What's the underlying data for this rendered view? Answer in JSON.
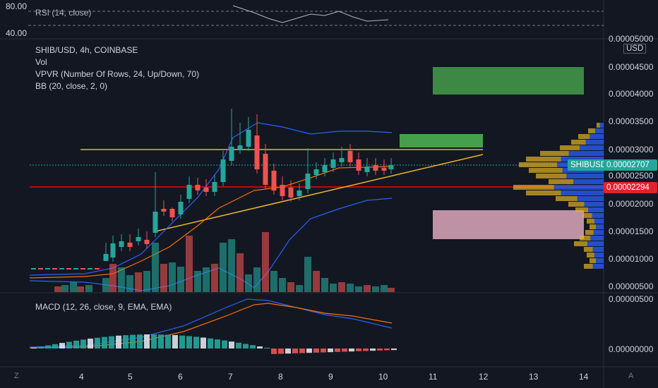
{
  "rsi": {
    "label": "RSI (14, close)",
    "y_labels": [
      "80.00",
      "40.00"
    ]
  },
  "main": {
    "title": "SHIB/USD, 4h, COINBASE",
    "indicators": [
      "Vol",
      "VPVR (Number Of Rows, 24, Up/Down, 70)",
      "BB (20, close, 2, 0)"
    ],
    "currency_button": "USD",
    "price_labels": [
      "0.00005000",
      "0.00004500",
      "0.00004000",
      "0.00003500",
      "0.00003000",
      "0.00002500",
      "0.00002000",
      "0.00001500",
      "0.00001000",
      "0.00000500"
    ],
    "symbol_badge": "SHIBUSD",
    "last_price": "0.00002707",
    "line_price": "0.00002294"
  },
  "macd": {
    "label": "MACD (12, 26, close, 9, EMA, EMA)",
    "y_labels": [
      "0.00000500",
      "0.00000000"
    ]
  },
  "time_axis": {
    "labels": [
      "4",
      "5",
      "6",
      "7",
      "8",
      "9",
      "10",
      "11",
      "12",
      "13",
      "14"
    ],
    "left_control": "Z",
    "right_control": "A"
  },
  "colors": {
    "up": "#26a69a",
    "down": "#ef5350",
    "bb": "#2962ff",
    "basis": "#ff6d00",
    "trend": "#f0b429",
    "red_line": "#ff0000",
    "green_zone": "#4caf50",
    "pink_zone": "#f8bbd0"
  }
}
